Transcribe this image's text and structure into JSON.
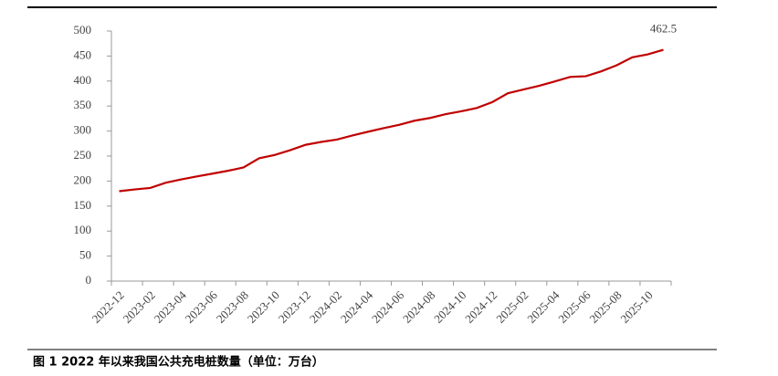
{
  "chart_data": {
    "type": "line",
    "title": "图 1   2022 年以来我国公共充电桩数量（单位：万台）",
    "categories": [
      "2022-12",
      null,
      "2023-02",
      null,
      "2023-04",
      null,
      "2023-06",
      null,
      "2023-08",
      null,
      "2023-10",
      null,
      "2023-12",
      null,
      "2024-02",
      null,
      "2024-04",
      null,
      "2024-06",
      null,
      "2024-08",
      null,
      "2024-10",
      null,
      "2024-12",
      null,
      "2025-02",
      null,
      "2025-04",
      null,
      "2025-06",
      null,
      "2025-08",
      null,
      "2025-10",
      null
    ],
    "series": [
      {
        "name": "公共充电桩数量",
        "color": "#c00000",
        "values": [
          179.7,
          183.3,
          186.2,
          196.7,
          203.4,
          209.3,
          214.9,
          220.6,
          227.2,
          245.6,
          252.1,
          261.7,
          272.6,
          278.3,
          283.0,
          291.1,
          298.6,
          305.7,
          312.3,
          320.7,
          326.2,
          333.8,
          339.5,
          346.1,
          357.9,
          375.6,
          383.1,
          390.4,
          399.0,
          408.2,
          409.6,
          419.4,
          431.6,
          447.4,
          453.3,
          462.5
        ]
      }
    ],
    "ylim": [
      0,
      500
    ],
    "yticks": [
      0,
      50,
      100,
      150,
      200,
      250,
      300,
      350,
      400,
      450,
      500
    ],
    "grid": false
  }
}
